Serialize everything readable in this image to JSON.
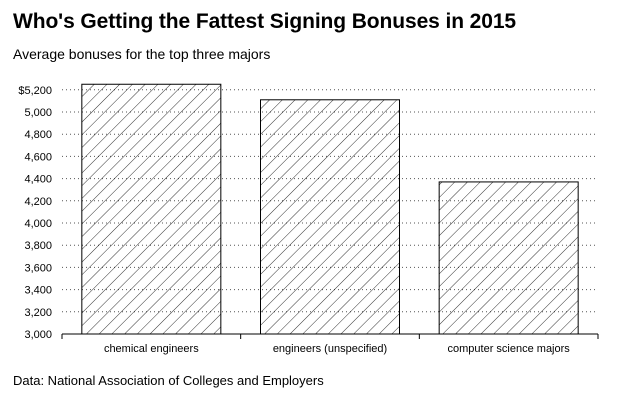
{
  "header": {
    "title": "Who's Getting the Fattest Signing Bonuses in 2015",
    "subtitle": "Average bonuses for the top three majors"
  },
  "footer": {
    "source": "Data: National Association of Colleges and Employers"
  },
  "chart_data": {
    "type": "bar",
    "title": "Who's Getting the Fattest Signing Bonuses in 2015",
    "subtitle": "Average bonuses for the top three majors",
    "categories": [
      "chemical engineers",
      "engineers (unspecified)",
      "computer science majors"
    ],
    "values": [
      5250,
      5110,
      4370
    ],
    "ylim": [
      3000,
      5200
    ],
    "yticks": [
      3000,
      3200,
      3400,
      3600,
      3800,
      4000,
      4200,
      4400,
      4600,
      4800,
      5000,
      5200
    ],
    "ytick_labels": [
      "3,000",
      "3,200",
      "3,400",
      "3,600",
      "3,800",
      "4,000",
      "4,200",
      "4,400",
      "4,600",
      "4,800",
      "5,000",
      "$5,200"
    ],
    "xlabel": "",
    "ylabel": "",
    "grid": "horizontal dotted",
    "bar_fill": "diagonal hatch",
    "colors": {
      "bar_stroke": "#000000",
      "hatch": "#000000",
      "grid": "#555555"
    }
  }
}
